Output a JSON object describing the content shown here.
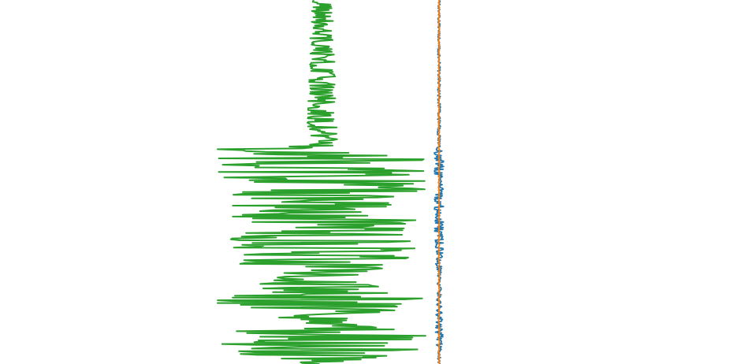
{
  "chart_data": {
    "type": "line",
    "orientation": "vertical-trace",
    "x_axis_visible": false,
    "y_axis_visible": false,
    "grid": false,
    "legend": "none",
    "xlim": [
      -1.0,
      1.0
    ],
    "ylim": [
      0,
      100
    ],
    "sample_step": 0.25,
    "series": [
      {
        "color": "#2ca02c",
        "envelope": [
          {
            "y": 0,
            "amplitude": 0.04,
            "center": -0.45
          },
          {
            "y": 40,
            "amplitude": 0.06,
            "center": -0.45
          },
          {
            "y": 41,
            "amplitude": 0.42,
            "center": -0.45
          },
          {
            "y": 72,
            "amplitude": 0.35,
            "center": -0.45
          },
          {
            "y": 76,
            "amplitude": 0.18,
            "center": -0.45
          },
          {
            "y": 83,
            "amplitude": 0.42,
            "center": -0.45
          },
          {
            "y": 88,
            "amplitude": 0.12,
            "center": -0.45
          },
          {
            "y": 92,
            "amplitude": 0.4,
            "center": -0.45
          },
          {
            "y": 97,
            "amplitude": 0.38,
            "center": -0.45
          },
          {
            "y": 100,
            "amplitude": 0.05,
            "center": -0.45
          }
        ]
      },
      {
        "color": "#1f77b4",
        "envelope": [
          {
            "y": 0,
            "amplitude": 0.004,
            "center": 0.0
          },
          {
            "y": 40,
            "amplitude": 0.006,
            "center": 0.0
          },
          {
            "y": 41,
            "amplitude": 0.018,
            "center": 0.0
          },
          {
            "y": 70,
            "amplitude": 0.018,
            "center": 0.0
          },
          {
            "y": 76,
            "amplitude": 0.006,
            "center": 0.0
          },
          {
            "y": 92,
            "amplitude": 0.016,
            "center": 0.0
          },
          {
            "y": 100,
            "amplitude": 0.004,
            "center": 0.0
          }
        ]
      },
      {
        "color": "#ff7f0e",
        "envelope": [
          {
            "y": 0,
            "amplitude": 0.002,
            "center": 0.0
          },
          {
            "y": 100,
            "amplitude": 0.002,
            "center": 0.0
          }
        ]
      }
    ]
  }
}
